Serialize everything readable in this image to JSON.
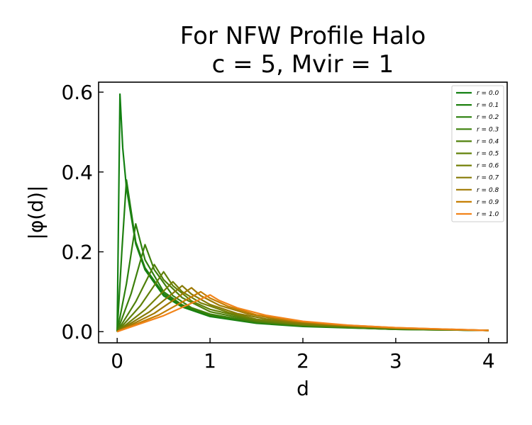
{
  "chart_data": {
    "type": "line",
    "title": [
      "For NFW Profile Halo",
      "c = 5, Mvir = 1"
    ],
    "xlabel": "d",
    "ylabel": "|φ(d)|",
    "xlim": [
      -0.2,
      4.2
    ],
    "ylim": [
      -0.028,
      0.625
    ],
    "xticks": [
      0,
      1,
      2,
      3,
      4
    ],
    "xtick_labels": [
      "0",
      "1",
      "2",
      "3",
      "4"
    ],
    "yticks": [
      0.0,
      0.2,
      0.4,
      0.6
    ],
    "ytick_labels": [
      "0.0",
      "0.2",
      "0.4",
      "0.6"
    ],
    "grid": false,
    "legend_position": "top-right",
    "series": [
      {
        "name": "r = 0.0",
        "color": "#128012",
        "peak": [
          0.03,
          0.595
        ],
        "points": [
          [
            0.0,
            0.0
          ],
          [
            0.03,
            0.595
          ],
          [
            0.06,
            0.46
          ],
          [
            0.1,
            0.36
          ],
          [
            0.2,
            0.22
          ],
          [
            0.3,
            0.155
          ],
          [
            0.5,
            0.09
          ],
          [
            0.7,
            0.062
          ],
          [
            1.0,
            0.038
          ],
          [
            1.5,
            0.021
          ],
          [
            2.0,
            0.013
          ],
          [
            3.0,
            0.006
          ],
          [
            4.0,
            0.003
          ]
        ]
      },
      {
        "name": "r = 0.1",
        "color": "#1f8010",
        "peak": [
          0.1,
          0.38
        ],
        "points": [
          [
            0.0,
            0.0
          ],
          [
            0.05,
            0.2
          ],
          [
            0.1,
            0.38
          ],
          [
            0.2,
            0.225
          ],
          [
            0.3,
            0.16
          ],
          [
            0.5,
            0.095
          ],
          [
            0.7,
            0.064
          ],
          [
            1.0,
            0.04
          ],
          [
            1.5,
            0.022
          ],
          [
            2.0,
            0.014
          ],
          [
            3.0,
            0.006
          ],
          [
            4.0,
            0.003
          ]
        ]
      },
      {
        "name": "r = 0.2",
        "color": "#2c800e",
        "peak": [
          0.2,
          0.27
        ],
        "points": [
          [
            0.0,
            0.0
          ],
          [
            0.1,
            0.12
          ],
          [
            0.2,
            0.27
          ],
          [
            0.3,
            0.18
          ],
          [
            0.5,
            0.1
          ],
          [
            0.7,
            0.067
          ],
          [
            1.0,
            0.042
          ],
          [
            1.5,
            0.023
          ],
          [
            2.0,
            0.014
          ],
          [
            3.0,
            0.006
          ],
          [
            4.0,
            0.003
          ]
        ]
      },
      {
        "name": "r = 0.3",
        "color": "#3d800c",
        "peak": [
          0.3,
          0.218
        ],
        "points": [
          [
            0.0,
            0.0
          ],
          [
            0.15,
            0.095
          ],
          [
            0.3,
            0.218
          ],
          [
            0.4,
            0.155
          ],
          [
            0.6,
            0.09
          ],
          [
            0.8,
            0.06
          ],
          [
            1.0,
            0.044
          ],
          [
            1.5,
            0.024
          ],
          [
            2.0,
            0.015
          ],
          [
            3.0,
            0.007
          ],
          [
            4.0,
            0.003
          ]
        ]
      },
      {
        "name": "r = 0.4",
        "color": "#4f800a",
        "peak": [
          0.4,
          0.168
        ],
        "points": [
          [
            0.0,
            0.0
          ],
          [
            0.2,
            0.075
          ],
          [
            0.4,
            0.168
          ],
          [
            0.5,
            0.13
          ],
          [
            0.7,
            0.085
          ],
          [
            1.0,
            0.05
          ],
          [
            1.5,
            0.026
          ],
          [
            2.0,
            0.016
          ],
          [
            3.0,
            0.007
          ],
          [
            4.0,
            0.003
          ]
        ]
      },
      {
        "name": "r = 0.5",
        "color": "#608008",
        "peak": [
          0.5,
          0.15
        ],
        "points": [
          [
            0.0,
            0.0
          ],
          [
            0.25,
            0.065
          ],
          [
            0.5,
            0.15
          ],
          [
            0.6,
            0.115
          ],
          [
            0.8,
            0.077
          ],
          [
            1.0,
            0.056
          ],
          [
            1.5,
            0.028
          ],
          [
            2.0,
            0.017
          ],
          [
            3.0,
            0.007
          ],
          [
            4.0,
            0.003
          ]
        ]
      },
      {
        "name": "r = 0.6",
        "color": "#738007",
        "peak": [
          0.6,
          0.125
        ],
        "points": [
          [
            0.0,
            0.0
          ],
          [
            0.3,
            0.055
          ],
          [
            0.6,
            0.125
          ],
          [
            0.7,
            0.1
          ],
          [
            0.9,
            0.072
          ],
          [
            1.2,
            0.048
          ],
          [
            1.5,
            0.031
          ],
          [
            2.0,
            0.018
          ],
          [
            3.0,
            0.008
          ],
          [
            4.0,
            0.003
          ]
        ]
      },
      {
        "name": "r = 0.7",
        "color": "#867a05",
        "peak": [
          0.7,
          0.115
        ],
        "points": [
          [
            0.0,
            0.0
          ],
          [
            0.35,
            0.05
          ],
          [
            0.7,
            0.115
          ],
          [
            0.8,
            0.094
          ],
          [
            1.0,
            0.068
          ],
          [
            1.3,
            0.045
          ],
          [
            1.6,
            0.032
          ],
          [
            2.0,
            0.02
          ],
          [
            3.0,
            0.008
          ],
          [
            4.0,
            0.003
          ]
        ]
      },
      {
        "name": "r = 0.8",
        "color": "#a07a04",
        "peak": [
          0.8,
          0.11
        ],
        "points": [
          [
            0.0,
            0.0
          ],
          [
            0.4,
            0.046
          ],
          [
            0.8,
            0.11
          ],
          [
            0.9,
            0.09
          ],
          [
            1.1,
            0.066
          ],
          [
            1.4,
            0.045
          ],
          [
            1.8,
            0.028
          ],
          [
            2.2,
            0.019
          ],
          [
            3.0,
            0.009
          ],
          [
            4.0,
            0.003
          ]
        ]
      },
      {
        "name": "r = 0.9",
        "color": "#c67e02",
        "peak": [
          0.9,
          0.1
        ],
        "points": [
          [
            0.0,
            0.0
          ],
          [
            0.45,
            0.042
          ],
          [
            0.9,
            0.1
          ],
          [
            1.0,
            0.084
          ],
          [
            1.2,
            0.063
          ],
          [
            1.5,
            0.042
          ],
          [
            1.9,
            0.027
          ],
          [
            2.4,
            0.017
          ],
          [
            3.0,
            0.01
          ],
          [
            4.0,
            0.003
          ]
        ]
      },
      {
        "name": "r = 1.0",
        "color": "#f2841a",
        "peak": [
          1.0,
          0.092
        ],
        "points": [
          [
            0.0,
            0.0
          ],
          [
            0.5,
            0.04
          ],
          [
            1.0,
            0.092
          ],
          [
            1.1,
            0.078
          ],
          [
            1.3,
            0.059
          ],
          [
            1.6,
            0.041
          ],
          [
            2.0,
            0.026
          ],
          [
            2.5,
            0.016
          ],
          [
            3.0,
            0.01
          ],
          [
            4.0,
            0.003
          ]
        ]
      }
    ]
  }
}
